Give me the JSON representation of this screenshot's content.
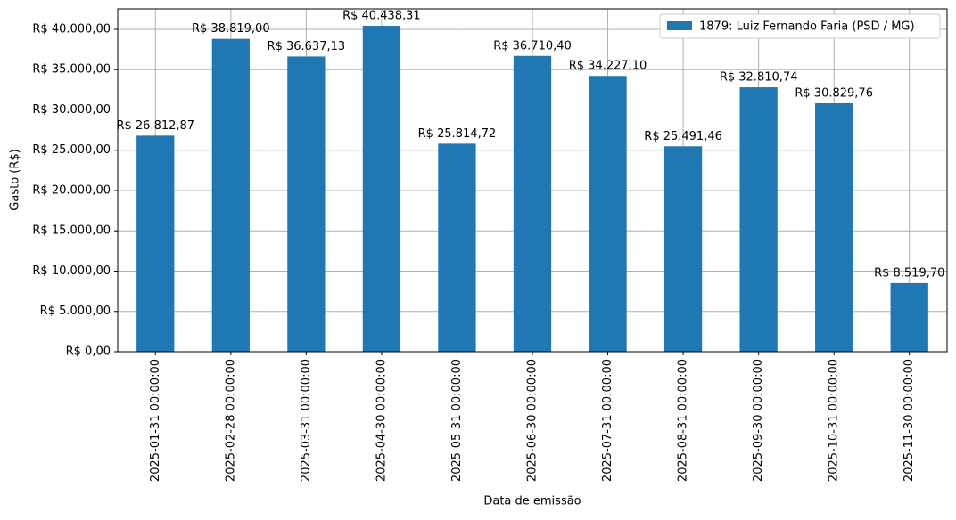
{
  "chart_data": {
    "type": "bar",
    "xlabel": "Data de emissão",
    "ylabel": "Gasto (R$)",
    "categories": [
      "2025-01-31 00:00:00",
      "2025-02-28 00:00:00",
      "2025-03-31 00:00:00",
      "2025-04-30 00:00:00",
      "2025-05-31 00:00:00",
      "2025-06-30 00:00:00",
      "2025-07-31 00:00:00",
      "2025-08-31 00:00:00",
      "2025-09-30 00:00:00",
      "2025-10-31 00:00:00",
      "2025-11-30 00:00:00"
    ],
    "series": [
      {
        "name": "1879: Luiz Fernando Faria (PSD / MG)",
        "color": "#1f77b4",
        "values": [
          26812.87,
          38819.0,
          36637.13,
          40438.31,
          25814.72,
          36710.4,
          34227.1,
          25491.46,
          32810.74,
          30829.76,
          8519.7
        ],
        "value_labels": [
          "R$ 26.812,87",
          "R$ 38.819,00",
          "R$ 36.637,13",
          "R$ 40.438,31",
          "R$ 25.814,72",
          "R$ 36.710,40",
          "R$ 34.227,10",
          "R$ 25.491,46",
          "R$ 32.810,74",
          "R$ 30.829,76",
          "R$ 8.519,70"
        ]
      }
    ],
    "ylim": [
      0,
      42541
    ],
    "yticks": [
      {
        "value": 0,
        "label": "R$ 0,00"
      },
      {
        "value": 5000,
        "label": "R$ 5.000,00"
      },
      {
        "value": 10000,
        "label": "R$ 10.000,00"
      },
      {
        "value": 15000,
        "label": "R$ 15.000,00"
      },
      {
        "value": 20000,
        "label": "R$ 20.000,00"
      },
      {
        "value": 25000,
        "label": "R$ 25.000,00"
      },
      {
        "value": 30000,
        "label": "R$ 30.000,00"
      },
      {
        "value": 35000,
        "label": "R$ 35.000,00"
      },
      {
        "value": 40000,
        "label": "R$ 40.000,00"
      }
    ],
    "grid": true,
    "legend": "upper right"
  }
}
